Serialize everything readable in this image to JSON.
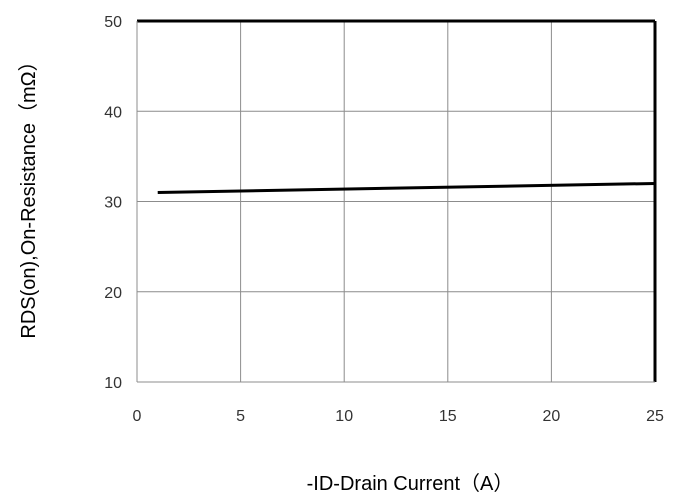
{
  "chart_data": {
    "type": "line",
    "title": "",
    "xlabel": "-ID-Drain Current（A）",
    "ylabel": "RDS(on),On-Resistance（mΩ）",
    "xlim": [
      0,
      25
    ],
    "ylim": [
      10,
      50
    ],
    "xticks": [
      0,
      5,
      10,
      15,
      20,
      25
    ],
    "yticks": [
      10,
      20,
      30,
      40,
      50
    ],
    "grid": true,
    "legend": "none",
    "series": [
      {
        "x": [
          1,
          25
        ],
        "y": [
          31,
          32
        ],
        "color": "#000000"
      }
    ]
  }
}
